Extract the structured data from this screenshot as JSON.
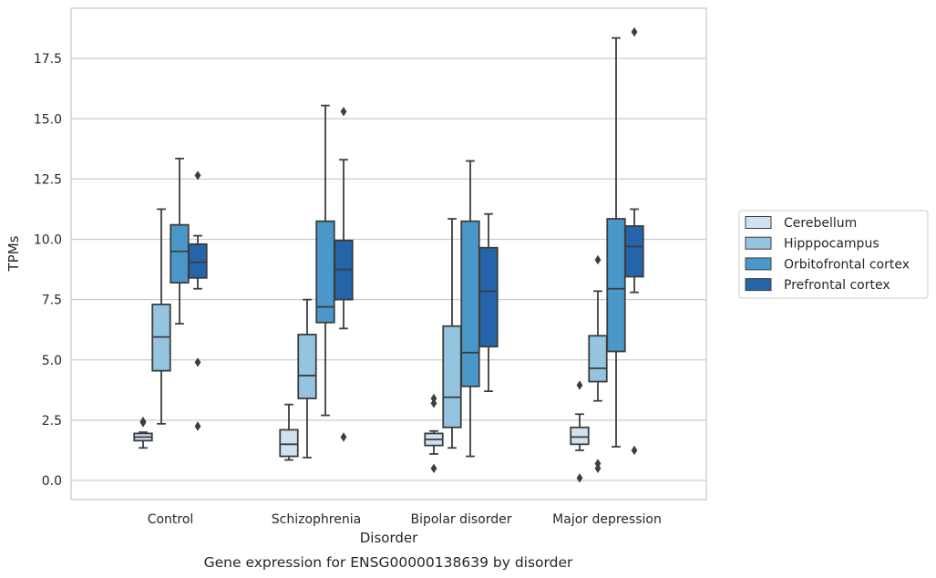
{
  "chart_data": {
    "type": "box",
    "caption": "Gene expression for ENSG00000138639 by disorder",
    "xlabel": "Disorder",
    "ylabel": "TPMs",
    "ylim": [
      -0.8,
      19.5
    ],
    "yticks": [
      0.0,
      2.5,
      5.0,
      7.5,
      10.0,
      12.5,
      15.0,
      17.5
    ],
    "ytick_labels": [
      "0.0",
      "2.5",
      "5.0",
      "7.5",
      "10.0",
      "12.5",
      "15.0",
      "17.5"
    ],
    "grid": "horizontal",
    "legend_position": "right",
    "categories": [
      "Control",
      "Schizophrenia",
      "Bipolar disorder",
      "Major depression"
    ],
    "series": [
      {
        "name": "Cerebellum",
        "color": "#d0e1f2",
        "boxes": [
          {
            "whislo": 1.35,
            "q1": 1.65,
            "med": 1.8,
            "q3": 1.95,
            "whishi": 2.0,
            "fliers": [
              2.45,
              2.4
            ]
          },
          {
            "whislo": 0.85,
            "q1": 1.0,
            "med": 1.5,
            "q3": 2.1,
            "whishi": 3.15,
            "fliers": []
          },
          {
            "whislo": 1.1,
            "q1": 1.45,
            "med": 1.7,
            "q3": 1.95,
            "whishi": 2.05,
            "fliers": [
              3.4,
              3.2,
              0.5
            ]
          },
          {
            "whislo": 1.25,
            "q1": 1.5,
            "med": 1.8,
            "q3": 2.2,
            "whishi": 2.75,
            "fliers": [
              3.95,
              0.1
            ]
          }
        ]
      },
      {
        "name": "Hipppocampus",
        "color": "#94c4df",
        "boxes": [
          {
            "whislo": 2.35,
            "q1": 4.55,
            "med": 5.95,
            "q3": 7.3,
            "whishi": 11.25,
            "fliers": []
          },
          {
            "whislo": 0.95,
            "q1": 3.4,
            "med": 4.35,
            "q3": 6.05,
            "whishi": 7.5,
            "fliers": []
          },
          {
            "whislo": 1.35,
            "q1": 2.2,
            "med": 3.45,
            "q3": 6.4,
            "whishi": 10.85,
            "fliers": []
          },
          {
            "whislo": 3.3,
            "q1": 4.1,
            "med": 4.65,
            "q3": 6.0,
            "whishi": 7.85,
            "fliers": [
              9.15,
              0.7,
              0.5
            ]
          }
        ]
      },
      {
        "name": "Orbitofrontal cortex",
        "color": "#4a98c9",
        "boxes": [
          {
            "whislo": 6.5,
            "q1": 8.2,
            "med": 9.5,
            "q3": 10.6,
            "whishi": 13.35,
            "fliers": []
          },
          {
            "whislo": 2.7,
            "q1": 6.55,
            "med": 7.2,
            "q3": 10.75,
            "whishi": 15.55,
            "fliers": []
          },
          {
            "whislo": 1.0,
            "q1": 3.9,
            "med": 5.3,
            "q3": 10.75,
            "whishi": 13.25,
            "fliers": []
          },
          {
            "whislo": 1.4,
            "q1": 5.35,
            "med": 7.95,
            "q3": 10.85,
            "whishi": 18.35,
            "fliers": []
          }
        ]
      },
      {
        "name": "Prefrontal cortex",
        "color": "#2464ab",
        "boxes": [
          {
            "whislo": 7.95,
            "q1": 8.4,
            "med": 9.05,
            "q3": 9.8,
            "whishi": 10.15,
            "fliers": [
              12.65,
              4.9,
              2.25
            ]
          },
          {
            "whislo": 6.3,
            "q1": 7.5,
            "med": 8.75,
            "q3": 9.95,
            "whishi": 13.3,
            "fliers": [
              15.3,
              1.8
            ]
          },
          {
            "whislo": 3.7,
            "q1": 5.55,
            "med": 7.85,
            "q3": 9.65,
            "whishi": 11.05,
            "fliers": []
          },
          {
            "whislo": 7.8,
            "q1": 8.45,
            "med": 9.7,
            "q3": 10.55,
            "whishi": 11.25,
            "fliers": [
              18.6,
              1.25
            ]
          }
        ]
      }
    ]
  }
}
